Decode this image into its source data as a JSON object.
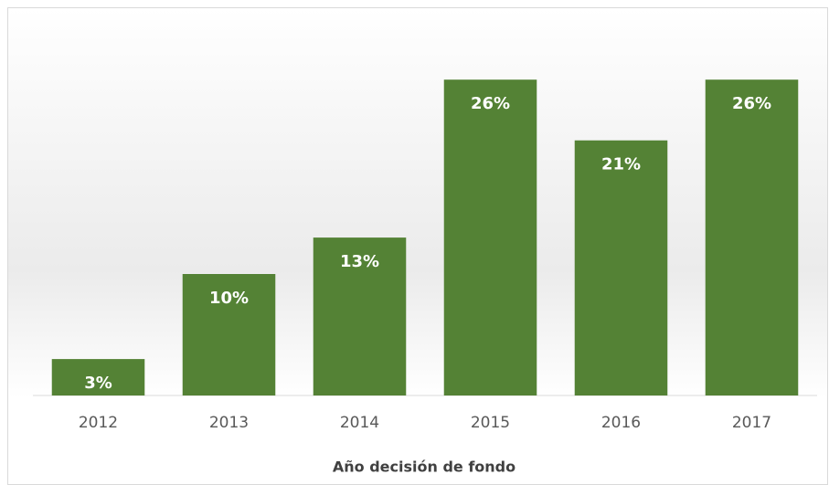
{
  "chart_data": {
    "type": "bar",
    "x_label": "Año decisión de fondo",
    "categories": [
      "2012",
      "2013",
      "2014",
      "2015",
      "2016",
      "2017"
    ],
    "values": [
      3,
      10,
      13,
      26,
      21,
      26
    ],
    "value_labels": [
      "3%",
      "10%",
      "13%",
      "26%",
      "21%",
      "26%"
    ],
    "color": "#548235",
    "ylim": [
      0,
      30
    ]
  }
}
